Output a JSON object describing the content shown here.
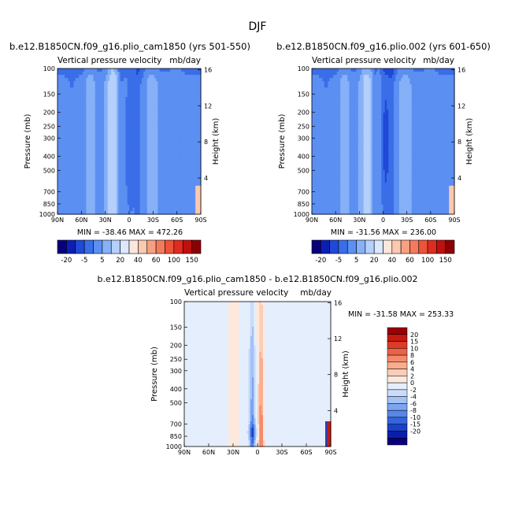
{
  "figure": {
    "title": "DJF"
  },
  "colors": {
    "top_palette": [
      "#08007a",
      "#0c1fb4",
      "#1f49d6",
      "#3a6ee8",
      "#5c8ff2",
      "#86b0f7",
      "#b4d0fb",
      "#dbe8fd",
      "#fde6dc",
      "#fbc8b0",
      "#f8a082",
      "#f47a5e",
      "#ee5238",
      "#e02c1e",
      "#bf1010",
      "#8a0004"
    ],
    "diff_palette": [
      "#08007a",
      "#0a1ea8",
      "#1b41c9",
      "#3565dd",
      "#5787e8",
      "#7ca5f0",
      "#a3c2f6",
      "#cadcfb",
      "#e4eefd",
      "#fde8de",
      "#fbcdb6",
      "#f8ad8f",
      "#f38a6a",
      "#ea6247",
      "#de3a28",
      "#c51a12",
      "#9a0006"
    ]
  },
  "chart_data": [
    {
      "type": "heatmap",
      "title": "b.e12.B1850CN.f09_g16.plio_cam1850 (yrs 501-550)",
      "subtitle_left": "Vertical pressure velocity",
      "subtitle_right": "mb/day",
      "xlabel": "",
      "ylabel": "Pressure (mb)",
      "ylabel_right": "Height (km)",
      "x_ticks": [
        "90N",
        "60N",
        "30N",
        "0",
        "30S",
        "60S",
        "90S"
      ],
      "x_values": [
        90,
        60,
        30,
        0,
        -30,
        -60,
        -90
      ],
      "y_ticks": [
        "100",
        "150",
        "200",
        "250",
        "300",
        "400",
        "500",
        "700",
        "850",
        "1000"
      ],
      "y_values": [
        100,
        150,
        200,
        250,
        300,
        400,
        500,
        700,
        850,
        1000
      ],
      "y_scale": "log",
      "ylim": [
        1000,
        100
      ],
      "y_right_ticks": [
        "16",
        "12",
        "8",
        "4"
      ],
      "y_right_values": [
        16,
        12,
        8,
        4
      ],
      "stats": "MIN = -38.46   MAX = 472.26",
      "colorbar_labels": [
        "-20",
        "-5",
        "5",
        "20",
        "40",
        "60",
        "100",
        "150"
      ],
      "colorbar_levels": [
        -20,
        -10,
        -5,
        0,
        5,
        10,
        20,
        30,
        40,
        50,
        60,
        80,
        100,
        120,
        150
      ]
    },
    {
      "type": "heatmap",
      "title": "b.e12.B1850CN.f09_g16.plio.002 (yrs 601-650)",
      "subtitle_left": "Vertical pressure velocity",
      "subtitle_right": "mb/day",
      "xlabel": "",
      "ylabel": "Pressure (mb)",
      "ylabel_right": "Height (km)",
      "x_ticks": [
        "90N",
        "60N",
        "30N",
        "0",
        "30S",
        "60S",
        "90S"
      ],
      "x_values": [
        90,
        60,
        30,
        0,
        -30,
        -60,
        -90
      ],
      "y_ticks": [
        "100",
        "150",
        "200",
        "250",
        "300",
        "400",
        "500",
        "700",
        "850",
        "1000"
      ],
      "y_values": [
        100,
        150,
        200,
        250,
        300,
        400,
        500,
        700,
        850,
        1000
      ],
      "y_scale": "log",
      "ylim": [
        1000,
        100
      ],
      "y_right_ticks": [
        "16",
        "12",
        "8",
        "4"
      ],
      "y_right_values": [
        16,
        12,
        8,
        4
      ],
      "stats": "MIN = -31.56   MAX = 236.00",
      "colorbar_labels": [
        "-20",
        "-5",
        "5",
        "20",
        "40",
        "60",
        "100",
        "150"
      ],
      "colorbar_levels": [
        -20,
        -10,
        -5,
        0,
        5,
        10,
        20,
        30,
        40,
        50,
        60,
        80,
        100,
        120,
        150
      ]
    },
    {
      "type": "heatmap",
      "title": "b.e12.B1850CN.f09_g16.plio_cam1850 - b.e12.B1850CN.f09_g16.plio.002",
      "subtitle_left": "Vertical pressure velocity",
      "subtitle_right": "mb/day",
      "xlabel": "",
      "ylabel": "Pressure (mb)",
      "ylabel_right": "Height (km)",
      "x_ticks": [
        "90N",
        "60N",
        "30N",
        "0",
        "30S",
        "60S",
        "90S"
      ],
      "x_values": [
        90,
        60,
        30,
        0,
        -30,
        -60,
        -90
      ],
      "y_ticks": [
        "100",
        "150",
        "200",
        "250",
        "300",
        "400",
        "500",
        "700",
        "850",
        "1000"
      ],
      "y_values": [
        100,
        150,
        200,
        250,
        300,
        400,
        500,
        700,
        850,
        1000
      ],
      "y_scale": "log",
      "ylim": [
        1000,
        100
      ],
      "y_right_ticks": [
        "16",
        "12",
        "8",
        "4"
      ],
      "y_right_values": [
        16,
        12,
        8,
        4
      ],
      "stats": "MIN = -31.58   MAX = 253.33",
      "colorbar_labels": [
        "20",
        "15",
        "10",
        "8",
        "6",
        "4",
        "2",
        "0",
        "-2",
        "-4",
        "-6",
        "-8",
        "-10",
        "-15",
        "-20"
      ],
      "colorbar_orientation": "vertical"
    }
  ]
}
